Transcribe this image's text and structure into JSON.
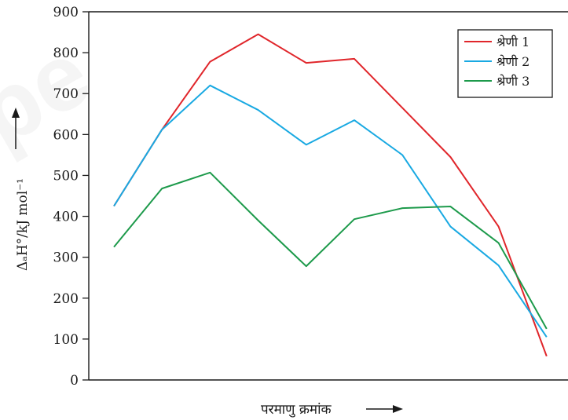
{
  "chart_data": {
    "type": "line",
    "title": "",
    "xlabel": "परमाणु क्रमांक",
    "ylabel": "ΔₐH°/kJ mol⁻¹",
    "ylim": [
      0,
      900
    ],
    "y_ticks": [
      0,
      100,
      200,
      300,
      400,
      500,
      600,
      700,
      800,
      900
    ],
    "grid": false,
    "legend_position": "top-right",
    "series": [
      {
        "name": "श्रेणी 1",
        "color": "#e0262b",
        "values": [
          425,
          612,
          778,
          845,
          775,
          785,
          665,
          545,
          375,
          58
        ]
      },
      {
        "name": "श्रेणी 2",
        "color": "#19a9e2",
        "values": [
          425,
          612,
          720,
          660,
          575,
          635,
          550,
          375,
          280,
          105
        ]
      },
      {
        "name": "श्रेणी 3",
        "color": "#1d9a4b",
        "values": [
          325,
          468,
          507,
          390,
          278,
          393,
          420,
          424,
          335,
          125
        ]
      }
    ]
  }
}
